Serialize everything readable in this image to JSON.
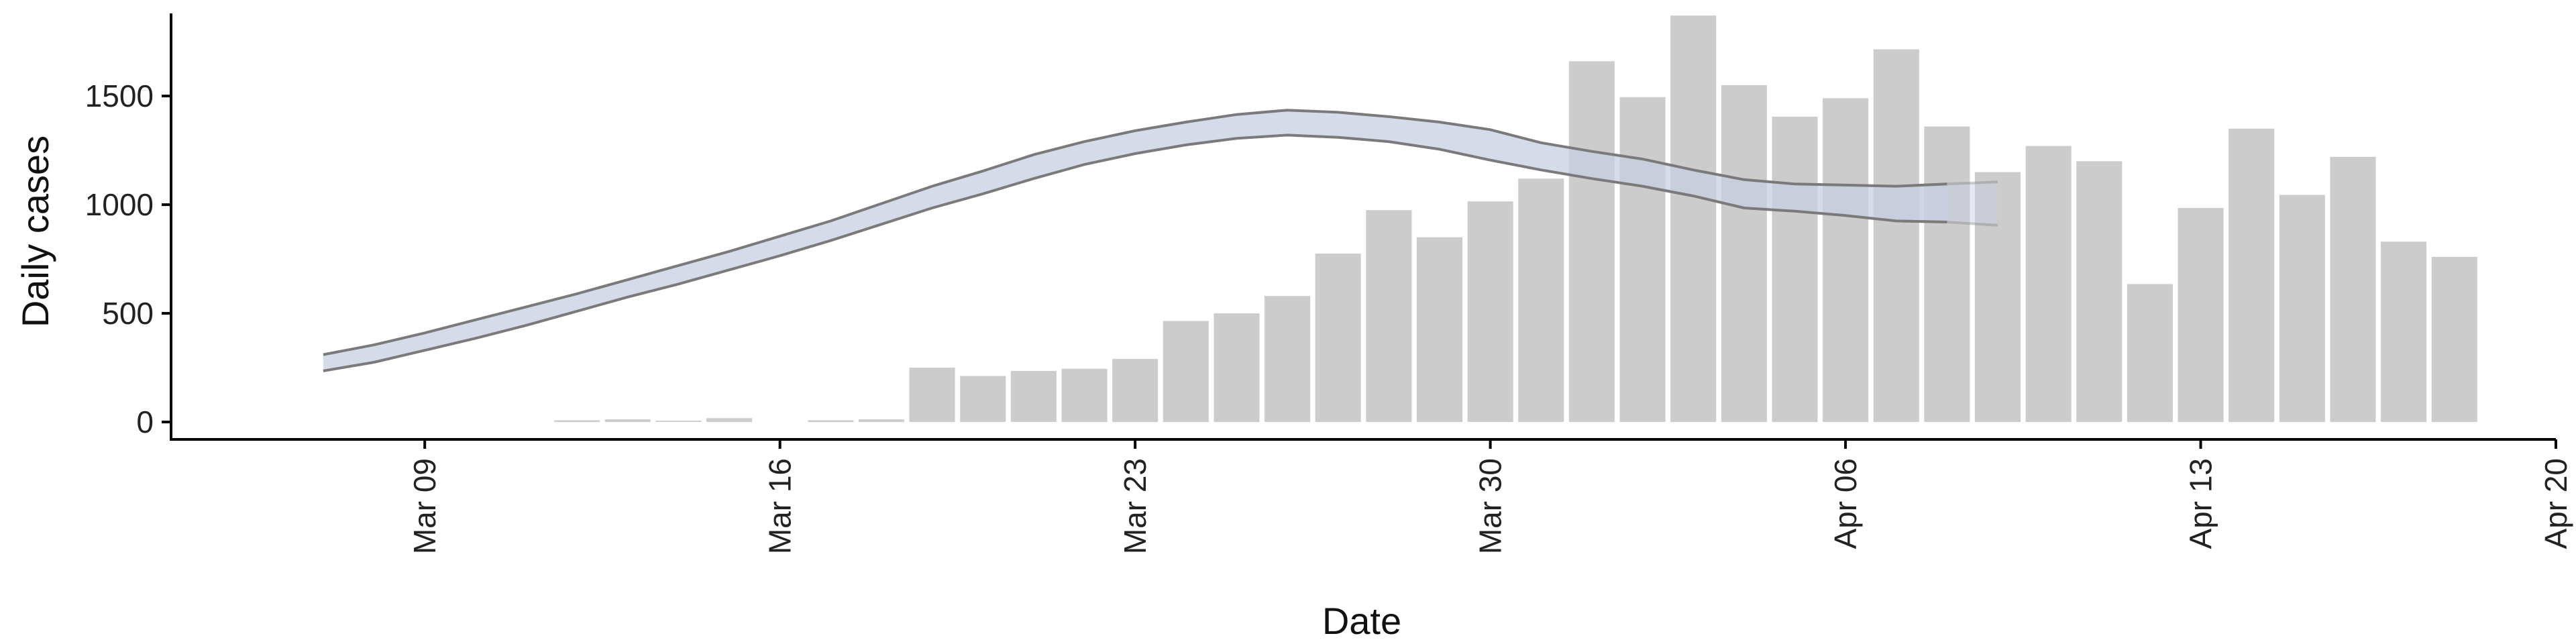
{
  "chart_data": {
    "type": "bar",
    "title": "",
    "xlabel": "Date",
    "ylabel": "Daily cases",
    "ylim": [
      -80,
      1880
    ],
    "y_ticks": [
      0,
      500,
      1000,
      1500
    ],
    "x_ticks": [
      "Mar 09",
      "Mar 16",
      "Mar 23",
      "Mar 30",
      "Apr 06",
      "Apr 13",
      "Apr 20"
    ],
    "x_tick_dates": [
      "2020-03-09",
      "2020-03-16",
      "2020-03-23",
      "2020-03-30",
      "2020-04-06",
      "2020-04-13",
      "2020-04-20"
    ],
    "x_range": [
      "2020-03-04",
      "2020-04-20"
    ],
    "grid": false,
    "colors": {
      "bars": "#cccccc",
      "band_fill": "#c7cfe0",
      "band_edge": "#7a7a7a",
      "axis": "#000000"
    },
    "series": [
      {
        "type": "bar",
        "x": [
          "2020-03-12",
          "2020-03-13",
          "2020-03-14",
          "2020-03-15",
          "2020-03-17",
          "2020-03-18",
          "2020-03-19",
          "2020-03-20",
          "2020-03-21",
          "2020-03-22",
          "2020-03-23",
          "2020-03-24",
          "2020-03-25",
          "2020-03-26",
          "2020-03-27",
          "2020-03-28",
          "2020-03-29",
          "2020-03-30",
          "2020-03-31",
          "2020-04-01",
          "2020-04-02",
          "2020-04-03",
          "2020-04-04",
          "2020-04-05",
          "2020-04-06",
          "2020-04-07",
          "2020-04-08",
          "2020-04-09",
          "2020-04-10",
          "2020-04-11",
          "2020-04-12",
          "2020-04-13",
          "2020-04-14",
          "2020-04-15",
          "2020-04-16",
          "2020-04-17",
          "2020-04-18"
        ],
        "values": [
          8,
          12,
          6,
          18,
          8,
          12,
          250,
          212,
          235,
          245,
          290,
          465,
          500,
          580,
          775,
          975,
          850,
          1015,
          1120,
          1660,
          1495,
          1870,
          1550,
          1405,
          1490,
          1715,
          1360,
          1150,
          1270,
          1200,
          635,
          985,
          1350,
          1045,
          1220,
          830,
          760
        ]
      },
      {
        "type": "area",
        "x": [
          "2020-03-07",
          "2020-03-08",
          "2020-03-09",
          "2020-03-10",
          "2020-03-11",
          "2020-03-12",
          "2020-03-13",
          "2020-03-14",
          "2020-03-15",
          "2020-03-16",
          "2020-03-17",
          "2020-03-18",
          "2020-03-19",
          "2020-03-20",
          "2020-03-21",
          "2020-03-22",
          "2020-03-23",
          "2020-03-24",
          "2020-03-25",
          "2020-03-26",
          "2020-03-27",
          "2020-03-28",
          "2020-03-29",
          "2020-03-30",
          "2020-03-31",
          "2020-04-01",
          "2020-04-02",
          "2020-04-03",
          "2020-04-04",
          "2020-04-05",
          "2020-04-06",
          "2020-04-07",
          "2020-04-08",
          "2020-04-09"
        ],
        "lower": [
          235,
          275,
          330,
          385,
          445,
          510,
          575,
          635,
          700,
          765,
          835,
          910,
          985,
          1050,
          1120,
          1185,
          1235,
          1275,
          1305,
          1320,
          1310,
          1290,
          1255,
          1205,
          1160,
          1120,
          1085,
          1040,
          985,
          970,
          950,
          925,
          920,
          905
        ],
        "upper": [
          310,
          355,
          410,
          470,
          530,
          590,
          655,
          720,
          785,
          855,
          925,
          1005,
          1085,
          1155,
          1230,
          1290,
          1340,
          1380,
          1415,
          1435,
          1425,
          1405,
          1380,
          1345,
          1285,
          1245,
          1210,
          1160,
          1115,
          1095,
          1090,
          1085,
          1095,
          1105
        ],
        "lower_faint": [
          null,
          null,
          null,
          null,
          null,
          null,
          null,
          null,
          null,
          null,
          null,
          null,
          null,
          null,
          null,
          null,
          null,
          null,
          null,
          null,
          null,
          null,
          null,
          null,
          null,
          null,
          null,
          null,
          null,
          null,
          null,
          null,
          925,
          855
        ],
        "upper_faint": [
          null,
          null,
          null,
          null,
          null,
          null,
          null,
          null,
          null,
          null,
          null,
          null,
          null,
          null,
          null,
          null,
          null,
          null,
          null,
          null,
          null,
          null,
          null,
          null,
          null,
          null,
          null,
          null,
          null,
          null,
          null,
          null,
          1110,
          1095
        ]
      }
    ]
  }
}
